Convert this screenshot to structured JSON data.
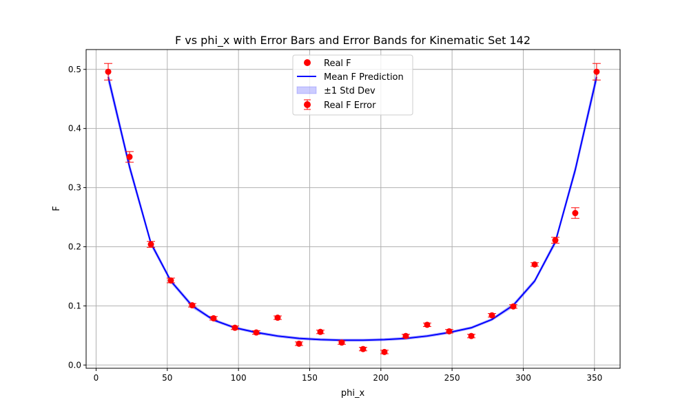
{
  "colors": {
    "point": "#ff0000",
    "line": "#0000ff",
    "band": "#0000ff"
  },
  "chart_data": {
    "type": "line",
    "title": "F vs phi_x with Error Bars and Error Bands for Kinematic Set 142",
    "xlabel": "phi_x",
    "ylabel": "F",
    "xlim": [
      -7,
      368
    ],
    "ylim": [
      -0.0055,
      0.5335
    ],
    "xticks": [
      0,
      50,
      100,
      150,
      200,
      250,
      300,
      350
    ],
    "yticks": [
      0.0,
      0.1,
      0.2,
      0.3,
      0.4,
      0.5
    ],
    "grid": true,
    "legend_position": "top-center",
    "legend": {
      "real_f": "Real F",
      "mean_pred": "Mean F Prediction",
      "std_band": "±1 Std Dev",
      "real_f_error": "Real F Error"
    },
    "real_f": {
      "name": "Real F",
      "x": [
        8.5,
        23.5,
        38.5,
        52.5,
        67.5,
        82.5,
        97.5,
        112.5,
        127.5,
        142.5,
        157.5,
        172.5,
        187.5,
        202.5,
        217.5,
        232.5,
        248,
        263.5,
        278,
        293,
        308,
        322.5,
        336.5,
        351.5
      ],
      "y": [
        0.496,
        0.352,
        0.204,
        0.143,
        0.101,
        0.079,
        0.063,
        0.055,
        0.08,
        0.036,
        0.056,
        0.038,
        0.027,
        0.022,
        0.049,
        0.068,
        0.057,
        0.049,
        0.084,
        0.099,
        0.17,
        0.211,
        0.257,
        0.496
      ],
      "err": [
        0.014,
        0.009,
        0.005,
        0.004,
        0.003,
        0.003,
        0.003,
        0.003,
        0.003,
        0.003,
        0.003,
        0.003,
        0.003,
        0.003,
        0.003,
        0.003,
        0.003,
        0.003,
        0.003,
        0.003,
        0.003,
        0.005,
        0.009,
        0.014
      ]
    },
    "mean_prediction": {
      "name": "Mean F Prediction",
      "x": [
        8.5,
        23.5,
        38.5,
        52.5,
        67.5,
        82.5,
        97.5,
        112.5,
        127.5,
        142.5,
        157.5,
        172.5,
        187.5,
        202.5,
        217.5,
        232.5,
        248,
        263.5,
        278,
        293,
        308,
        322.5,
        336.5,
        351.5
      ],
      "y": [
        0.487,
        0.335,
        0.206,
        0.142,
        0.1,
        0.076,
        0.063,
        0.055,
        0.049,
        0.045,
        0.043,
        0.042,
        0.042,
        0.043,
        0.045,
        0.049,
        0.055,
        0.063,
        0.077,
        0.101,
        0.142,
        0.208,
        0.33,
        0.487
      ],
      "std": [
        0.008,
        0.006,
        0.004,
        0.003,
        0.003,
        0.002,
        0.002,
        0.002,
        0.002,
        0.002,
        0.002,
        0.002,
        0.002,
        0.002,
        0.002,
        0.002,
        0.002,
        0.002,
        0.002,
        0.003,
        0.003,
        0.004,
        0.006,
        0.008
      ]
    }
  }
}
